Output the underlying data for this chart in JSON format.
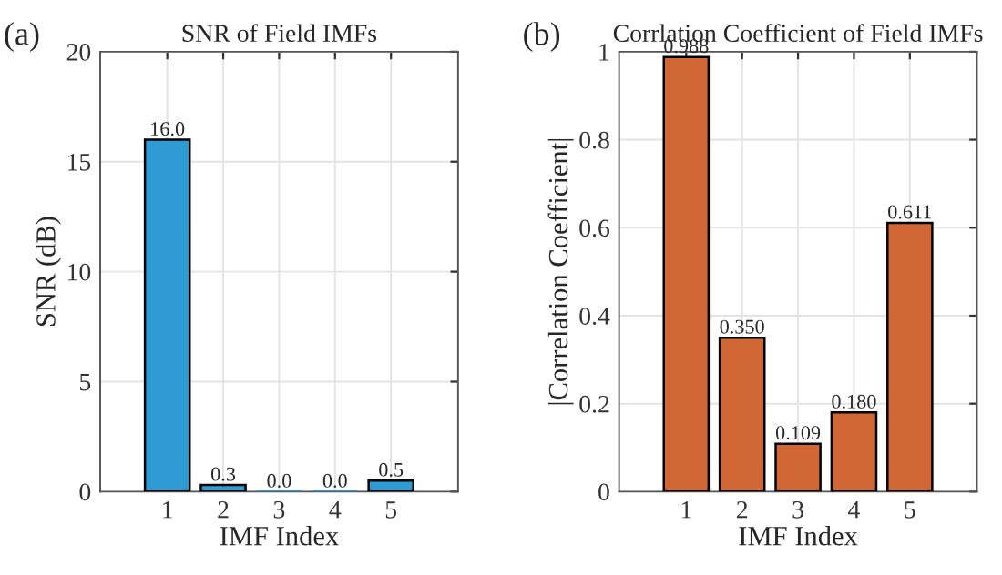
{
  "chart_data": [
    {
      "type": "bar",
      "title": "SNR of Field IMFs",
      "xlabel": "IMF Index",
      "ylabel": "SNR (dB)",
      "annotations": [
        "(a)"
      ],
      "categories": [
        "1",
        "2",
        "3",
        "4",
        "5"
      ],
      "values": [
        16.0,
        0.3,
        0.0,
        0.0,
        0.5
      ],
      "value_labels": [
        "16.0",
        "0.3",
        "0.0",
        "0.0",
        "0.5"
      ],
      "color": "#2f9bd5",
      "ylim": [
        0,
        20
      ],
      "yticks": [
        0,
        5,
        10,
        15,
        20
      ],
      "grid": true
    },
    {
      "type": "bar",
      "title": "Corrlation Coefficient of Field IMFs",
      "xlabel": "IMF Index",
      "ylabel": "|Correlation Coefficient|",
      "annotations": [
        "(b)"
      ],
      "categories": [
        "1",
        "2",
        "3",
        "4",
        "5"
      ],
      "values": [
        0.988,
        0.35,
        0.109,
        0.18,
        0.611
      ],
      "value_labels": [
        "0.988",
        "0.350",
        "0.109",
        "0.180",
        "0.611"
      ],
      "color": "#d06734",
      "ylim": [
        0,
        1
      ],
      "yticks": [
        0,
        0.2,
        0.4,
        0.6,
        0.8,
        1
      ],
      "grid": true
    }
  ]
}
